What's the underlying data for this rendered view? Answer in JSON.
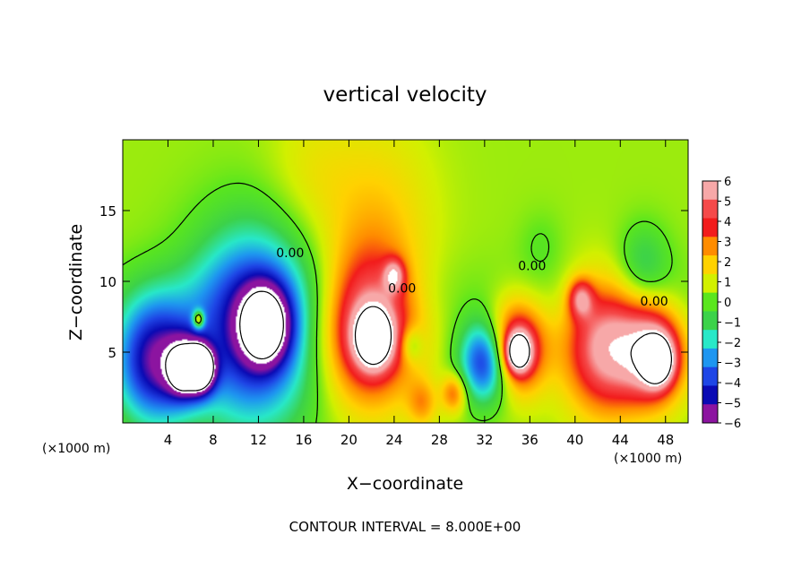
{
  "chart_data": {
    "type": "heatmap",
    "title": "vertical velocity",
    "xlabel": "X−coordinate",
    "ylabel": "Z−coordinate",
    "x_unit_left": "(×1000 m)",
    "x_unit_right": "(×1000 m)",
    "footer": "CONTOUR INTERVAL = 8.000E+00",
    "xlim": [
      0,
      50
    ],
    "ylim": [
      0,
      20
    ],
    "x_ticks": [
      4,
      8,
      12,
      16,
      20,
      24,
      28,
      32,
      36,
      40,
      44,
      48
    ],
    "y_ticks": [
      5,
      10,
      15
    ],
    "colorbar": {
      "levels": [
        6,
        5,
        4,
        3,
        2,
        1,
        0,
        -1,
        -2,
        -3,
        -4,
        -5,
        -6
      ],
      "labels": [
        "6",
        "5",
        "4",
        "3",
        "2",
        "1",
        "0",
        "−1",
        "−2",
        "−3",
        "−4",
        "−5",
        "−6"
      ],
      "colors": [
        "#f7a8a8",
        "#f54a4a",
        "#f21c1c",
        "#ff8c00",
        "#ffd200",
        "#d2f000",
        "#5ae61e",
        "#3cd24a",
        "#28e8c8",
        "#1e96f0",
        "#1e46e6",
        "#0a0ab4",
        "#8c14a0"
      ]
    },
    "contour_labels": [
      {
        "text": "0.00",
        "x": 14.8,
        "y": 11.7
      },
      {
        "text": "0.00",
        "x": 24.7,
        "y": 9.2
      },
      {
        "text": "0.00",
        "x": 36.2,
        "y": 10.8
      },
      {
        "text": "0.00",
        "x": 47.0,
        "y": 8.3
      }
    ],
    "features": [
      {
        "x": 21.8,
        "z": 6.8,
        "w": 4.1,
        "value": 6
      },
      {
        "x": 22.2,
        "z": 6.0,
        "w": 1.5,
        "value": 8
      },
      {
        "x": 34.7,
        "z": 5.3,
        "w": 2.5,
        "value": 6
      },
      {
        "x": 35.0,
        "z": 5.0,
        "w": 1.0,
        "value": 8
      },
      {
        "x": 42.8,
        "z": 5.4,
        "w": 3.6,
        "value": 6
      },
      {
        "x": 47.0,
        "z": 4.8,
        "w": 2.6,
        "value": 6
      },
      {
        "x": 47.3,
        "z": 4.4,
        "w": 1.2,
        "value": 8
      },
      {
        "x": 40.5,
        "z": 8.8,
        "w": 1.1,
        "value": 4
      },
      {
        "x": 11.5,
        "z": 6.7,
        "w": 5.5,
        "value": -6
      },
      {
        "x": 12.5,
        "z": 6.9,
        "w": 2.0,
        "value": -8
      },
      {
        "x": 2.8,
        "z": 4.4,
        "w": 3.5,
        "value": -6
      },
      {
        "x": 5.4,
        "z": 3.9,
        "w": 1.6,
        "value": -6
      },
      {
        "x": 5.2,
        "z": 3.6,
        "w": 0.7,
        "value": -8
      },
      {
        "x": 6.9,
        "z": 3.7,
        "w": 1.3,
        "value": -6
      },
      {
        "x": 6.8,
        "z": 4.0,
        "w": 0.9,
        "value": -8
      },
      {
        "x": 6.7,
        "z": 7.3,
        "w": 0.5,
        "value": 5
      },
      {
        "x": 32.2,
        "z": 4.4,
        "w": 2.3,
        "value": -6
      },
      {
        "x": 25.5,
        "z": 5.5,
        "w": 1.0,
        "value": -2
      },
      {
        "x": 29.3,
        "z": 2.1,
        "w": 1.1,
        "value": 3
      },
      {
        "x": 26.5,
        "z": 1.4,
        "w": 1.3,
        "value": 2
      },
      {
        "x": 22.5,
        "z": 15.0,
        "w": 5.0,
        "value": 1.4
      },
      {
        "x": 16.5,
        "z": 17.5,
        "w": 4.0,
        "value": 0.8
      },
      {
        "x": 46.0,
        "z": 11.2,
        "w": 2.3,
        "value": -1.8
      },
      {
        "x": 37.0,
        "z": 12.5,
        "w": 2.0,
        "value": -0.6
      },
      {
        "x": 24.0,
        "z": 10.4,
        "w": 0.9,
        "value": 4
      }
    ]
  }
}
